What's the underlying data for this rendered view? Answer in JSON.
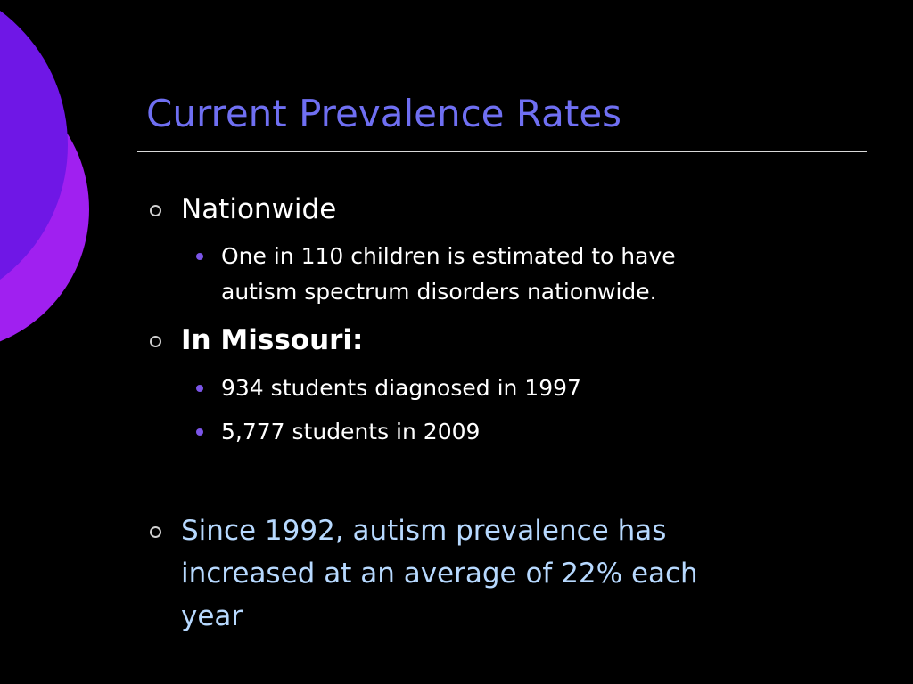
{
  "slide": {
    "title": "Current Prevalence Rates",
    "colors": {
      "background": "#000000",
      "title": "#6f6ff2",
      "body_text": "#ffffff",
      "accent_text": "#b7d9ff",
      "circle_front": "#6f17e6",
      "circle_back": "#a020f0",
      "sub_bullet": "#7b55e8"
    },
    "bullets": {
      "nationwide": {
        "label": "Nationwide",
        "sub": {
          "line1": "One in 110 children is estimated to have",
          "line2": "autism spectrum disorders nationwide."
        }
      },
      "missouri": {
        "label": "In Missouri:",
        "sub1": "934 students diagnosed in 1997",
        "sub2": "5,777 students in 2009"
      },
      "growth": {
        "line1": "Since 1992, autism prevalence has",
        "line2": "increased at an average of 22% each",
        "line3": "year"
      }
    }
  }
}
